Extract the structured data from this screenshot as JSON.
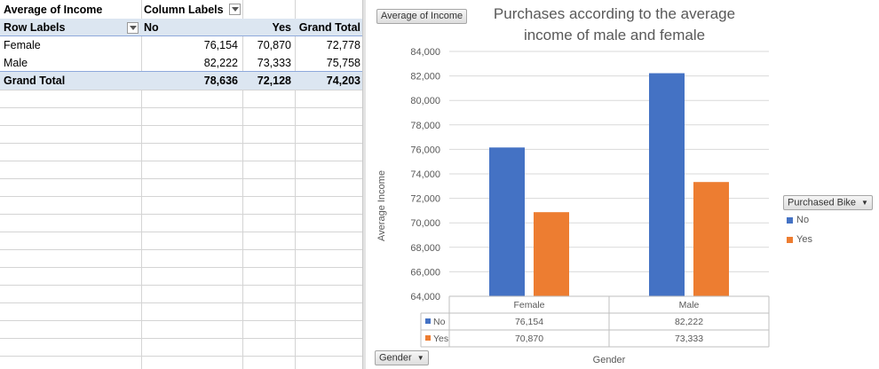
{
  "pivot": {
    "value_field": "Average of Income",
    "column_labels": "Column Labels",
    "row_labels": "Row Labels",
    "columns": [
      "No",
      "Yes",
      "Grand Total"
    ],
    "rows": [
      {
        "label": "Female",
        "values": [
          "76,154",
          "70,870",
          "72,778"
        ]
      },
      {
        "label": "Male",
        "values": [
          "82,222",
          "73,333",
          "75,758"
        ]
      }
    ],
    "total": {
      "label": "Grand Total",
      "values": [
        "78,636",
        "72,128",
        "74,203"
      ]
    }
  },
  "colors": {
    "no": "#4472c4",
    "yes": "#ed7d31",
    "pivot_header": "#dce6f1",
    "gridline": "#d9d9d9"
  },
  "chart_data": {
    "type": "bar",
    "title": "Purchases according to the average income of male and female",
    "title_lines": [
      "Purchases according to the average",
      "income of male and female"
    ],
    "categories": [
      "Female",
      "Male"
    ],
    "series": [
      {
        "name": "No",
        "values": [
          76154,
          82222
        ],
        "labels": [
          "76,154",
          "82,222"
        ]
      },
      {
        "name": "Yes",
        "values": [
          70870,
          73333
        ],
        "labels": [
          "70,870",
          "73,333"
        ]
      }
    ],
    "xlabel": "Gender",
    "ylabel": "Average Income",
    "ylim": [
      64000,
      84000
    ],
    "yticks": [
      "64,000",
      "66,000",
      "68,000",
      "70,000",
      "72,000",
      "74,000",
      "76,000",
      "78,000",
      "80,000",
      "82,000",
      "84,000"
    ],
    "legend_title": "Purchased Bike",
    "legend_position": "right",
    "grid": true,
    "data_table": true
  },
  "chart_buttons": {
    "values": "Average of Income",
    "axis": "Gender",
    "legend": "Purchased Bike"
  }
}
